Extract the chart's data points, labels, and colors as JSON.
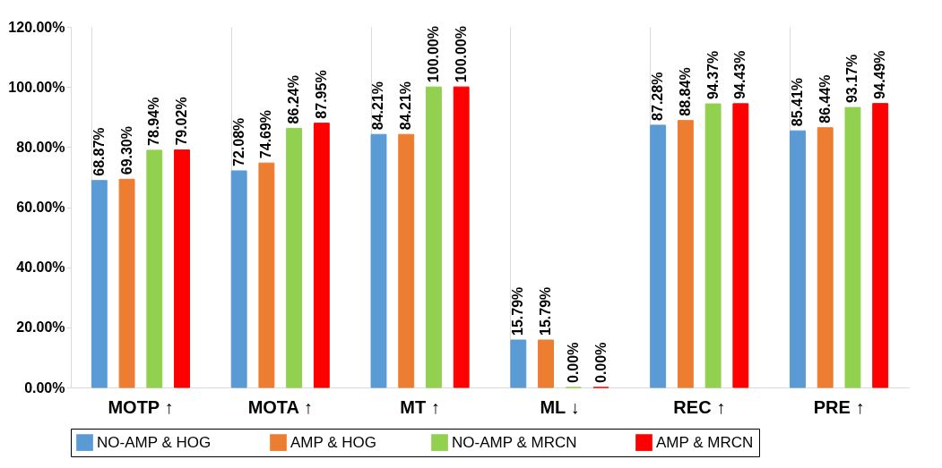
{
  "chart_data": {
    "type": "bar",
    "categories": [
      "MOTP ↑",
      "MOTA ↑",
      "MT ↑",
      "ML ↓",
      "REC ↑",
      "PRE ↑"
    ],
    "series": [
      {
        "name": "NO-AMP &  HOG",
        "color": "#5b9bd5",
        "values": [
          68.87,
          72.08,
          84.21,
          15.79,
          87.28,
          85.41
        ],
        "value_labels": [
          "68.87%",
          "72.08%",
          "84.21%",
          "15.79%",
          "87.28%",
          "85.41%"
        ]
      },
      {
        "name": "AMP & HOG",
        "color": "#ed7d31",
        "values": [
          69.3,
          74.69,
          84.21,
          15.79,
          88.84,
          86.44
        ],
        "value_labels": [
          "69.30%",
          "74.69%",
          "84.21%",
          "15.79%",
          "88.84%",
          "86.44%"
        ]
      },
      {
        "name": "NO-AMP &  MRCN",
        "color": "#92d050",
        "values": [
          78.94,
          86.24,
          100.0,
          0.0,
          94.37,
          93.17
        ],
        "value_labels": [
          "78.94%",
          "86.24%",
          "100.00%",
          "0.00%",
          "94.37%",
          "93.17%"
        ]
      },
      {
        "name": "AMP & MRCN",
        "color": "#ff0000",
        "values": [
          79.02,
          87.95,
          100.0,
          0.0,
          94.43,
          94.49
        ],
        "value_labels": [
          "79.02%",
          "87.95%",
          "100.00%",
          "0.00%",
          "94.43%",
          "94.49%"
        ]
      }
    ],
    "ylim": [
      0,
      120
    ],
    "yticks": [
      {
        "value": 0,
        "label": "0.00%"
      },
      {
        "value": 20,
        "label": "20.00%"
      },
      {
        "value": 40,
        "label": "40.00%"
      },
      {
        "value": 60,
        "label": "60.00%"
      },
      {
        "value": 80,
        "label": "80.00%"
      },
      {
        "value": 100,
        "label": "100.00%"
      },
      {
        "value": 120,
        "label": "120.00%"
      }
    ],
    "grid": "x",
    "legend": "bottom"
  }
}
